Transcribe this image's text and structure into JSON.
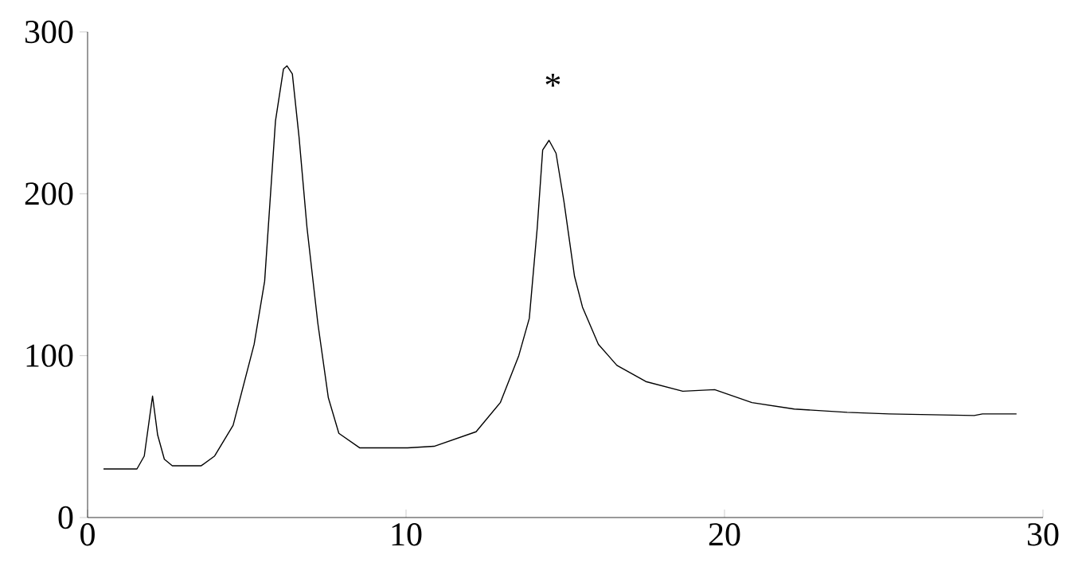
{
  "chart_data": {
    "type": "line",
    "color": "#000000",
    "x": [
      0.5,
      1.55,
      1.78,
      2.04,
      2.2,
      2.41,
      2.66,
      3.57,
      3.99,
      4.57,
      5.23,
      5.56,
      5.9,
      6.15,
      6.26,
      6.43,
      6.64,
      6.89,
      7.23,
      7.56,
      7.89,
      8.55,
      10.05,
      10.88,
      12.2,
      12.96,
      13.54,
      13.87,
      14.12,
      14.29,
      14.49,
      14.71,
      14.96,
      15.29,
      15.54,
      16.04,
      16.62,
      17.53,
      18.69,
      19.69,
      20.86,
      22.19,
      23.85,
      25.17,
      27.84,
      28.1,
      29.17
    ],
    "values": [
      30,
      30,
      38,
      75,
      51,
      36,
      32,
      32,
      38,
      57,
      107,
      146,
      245,
      277,
      279,
      274,
      235,
      179,
      120,
      74,
      52,
      43,
      43,
      44,
      53,
      71,
      100,
      123,
      179,
      227,
      233,
      225,
      195,
      149,
      130,
      107,
      94,
      84,
      78,
      79,
      71,
      67,
      65,
      64,
      63,
      64,
      64
    ],
    "xlim": [
      0,
      30
    ],
    "ylim": [
      0,
      300
    ],
    "xticks": [
      0,
      10,
      20,
      30
    ],
    "yticks": [
      0,
      100,
      200,
      300
    ],
    "annotations": [
      "*"
    ]
  }
}
